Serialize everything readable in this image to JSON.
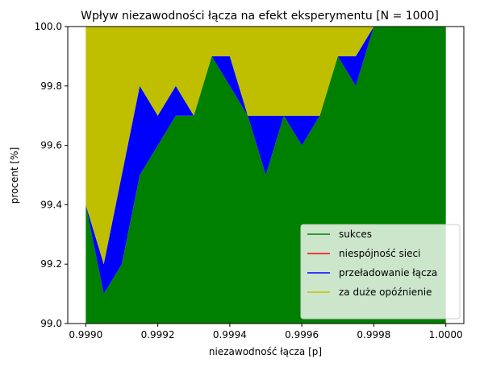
{
  "chart_data": {
    "type": "area",
    "title": "Wpływ niezawodności łącza na efekt eksperymentu [N = 1000]",
    "xlabel": "niezawodność łącza [p]",
    "ylabel": "procent [%]",
    "xlim": [
      0.99895,
      1.00005
    ],
    "ylim": [
      99.0,
      100.0
    ],
    "x_ticks": [
      0.999,
      0.9992,
      0.9994,
      0.9996,
      0.9998,
      1.0
    ],
    "x_tick_labels": [
      "0.9990",
      "0.9992",
      "0.9994",
      "0.9996",
      "0.9998",
      "1.0000"
    ],
    "y_ticks": [
      99.0,
      99.2,
      99.4,
      99.6,
      99.8,
      100.0
    ],
    "y_tick_labels": [
      "99.0",
      "99.2",
      "99.4",
      "99.6",
      "99.8",
      "100.0"
    ],
    "x": [
      0.999,
      0.99905,
      0.9991,
      0.99915,
      0.9992,
      0.99925,
      0.9993,
      0.99935,
      0.9994,
      0.99945,
      0.9995,
      0.99955,
      0.9996,
      0.99965,
      0.9997,
      0.99975,
      0.9998,
      0.99985,
      0.9999,
      0.99995,
      1.0
    ],
    "series": [
      {
        "name": "sukces",
        "color": "#008000",
        "values": [
          99.4,
          99.1,
          99.2,
          99.5,
          99.6,
          99.7,
          99.7,
          99.9,
          99.8,
          99.7,
          99.5,
          99.7,
          99.6,
          99.7,
          99.9,
          99.8,
          100.0,
          100.0,
          100.0,
          100.0,
          100.0
        ]
      },
      {
        "name": "niespójność sieci",
        "color": "#ff0000",
        "values": [
          0,
          0,
          0,
          0,
          0,
          0,
          0,
          0,
          0,
          0,
          0,
          0,
          0,
          0,
          0,
          0,
          0,
          0,
          0,
          0,
          0
        ]
      },
      {
        "name": "przeładowanie łącza",
        "color": "#0000ff",
        "values": [
          0.0,
          0.1,
          0.3,
          0.3,
          0.1,
          0.1,
          0.0,
          0.0,
          0.1,
          0.0,
          0.2,
          0.0,
          0.1,
          0.0,
          0.0,
          0.1,
          0.0,
          0.0,
          0.0,
          0.0,
          0.0
        ]
      },
      {
        "name": "za duże opóźnienie",
        "color": "#bfbf00",
        "values": [
          0.6,
          0.8,
          0.5,
          0.2,
          0.3,
          0.2,
          0.3,
          0.1,
          0.1,
          0.3,
          0.3,
          0.3,
          0.3,
          0.3,
          0.1,
          0.1,
          0.0,
          0.0,
          0.0,
          0.0,
          0.0
        ]
      }
    ],
    "legend_position": "lower-right",
    "grid": false
  }
}
